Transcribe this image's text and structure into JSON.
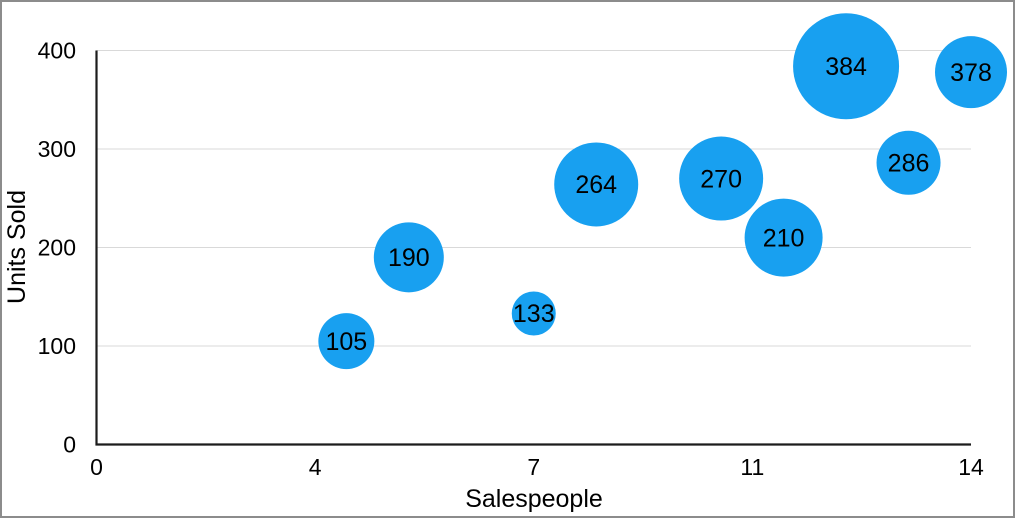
{
  "chart_data": {
    "type": "bubble",
    "title": "",
    "xlabel": "Salespeople",
    "ylabel": "Units Sold",
    "xlim": [
      0,
      14
    ],
    "ylim": [
      0,
      400
    ],
    "x_tick_labels": [
      "0",
      "4",
      "7",
      "11",
      "14"
    ],
    "y_ticks": [
      0,
      100,
      200,
      300,
      400
    ],
    "grid": "horizontal-only",
    "legend": "none",
    "colors": {
      "bubble_fill": "#18A0F0",
      "bubble_label_text": "#000000",
      "gridline": "#D9D9D9",
      "axis_line": "#1C1C1C",
      "tick_label_text": "#000000",
      "figure_border": "#8C8C8C",
      "background": "#FFFFFF"
    },
    "points": [
      {
        "x": 4,
        "y": 105,
        "label": "105",
        "radius_px": 28
      },
      {
        "x": 5,
        "y": 190,
        "label": "190",
        "radius_px": 35
      },
      {
        "x": 7,
        "y": 133,
        "label": "133",
        "radius_px": 22
      },
      {
        "x": 8,
        "y": 264,
        "label": "264",
        "radius_px": 42
      },
      {
        "x": 10,
        "y": 270,
        "label": "270",
        "radius_px": 42
      },
      {
        "x": 11,
        "y": 210,
        "label": "210",
        "radius_px": 39
      },
      {
        "x": 12,
        "y": 384,
        "label": "384",
        "radius_px": 53
      },
      {
        "x": 13,
        "y": 286,
        "label": "286",
        "radius_px": 32
      },
      {
        "x": 14,
        "y": 378,
        "label": "378",
        "radius_px": 36
      }
    ]
  }
}
